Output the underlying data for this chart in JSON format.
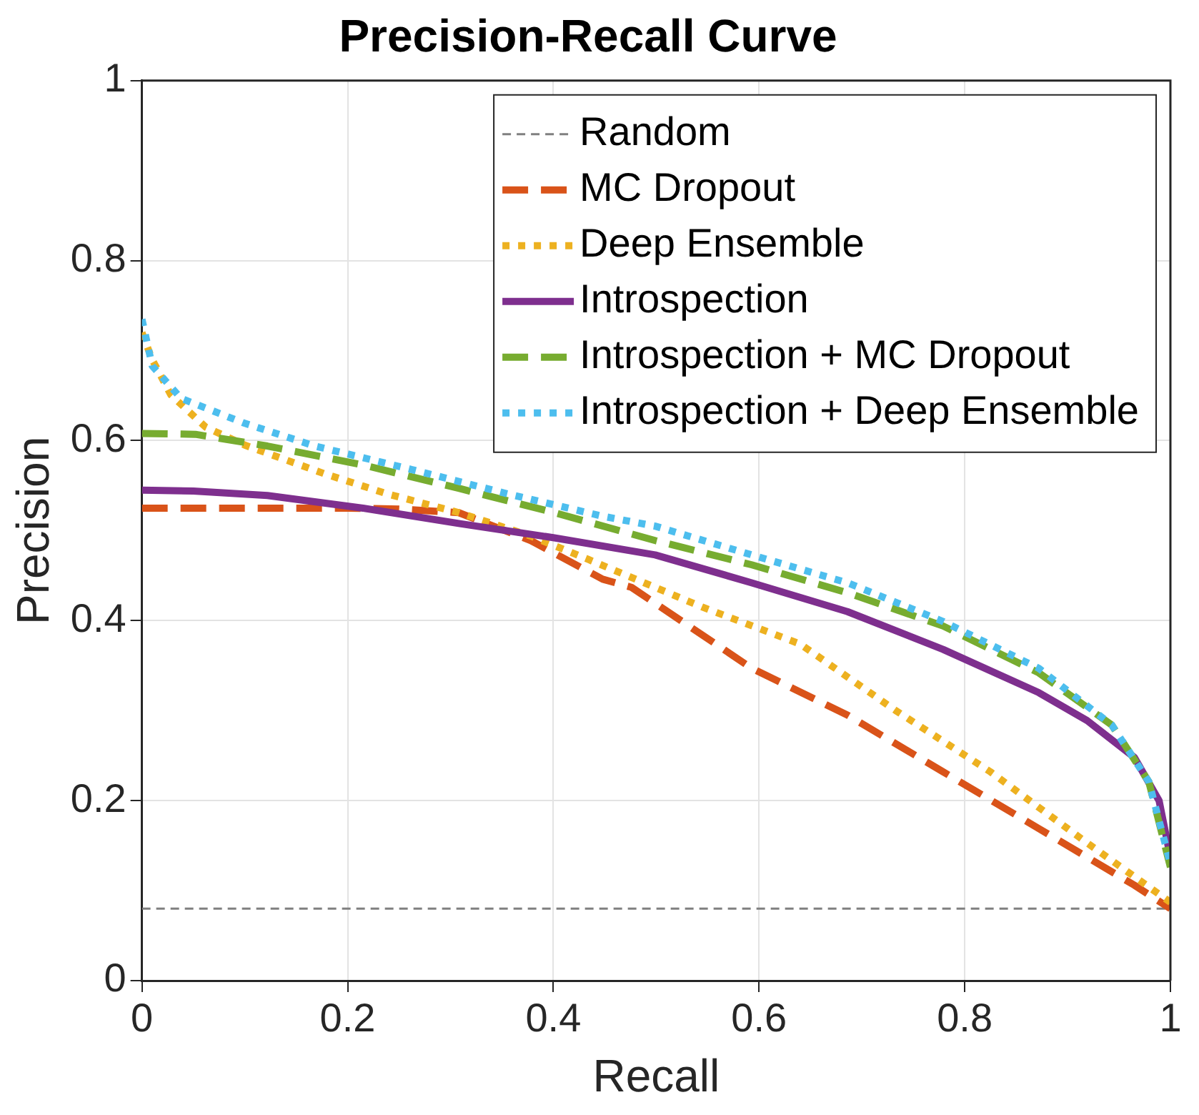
{
  "chart_data": {
    "type": "line",
    "title": "Precision-Recall Curve",
    "xlabel": "Recall",
    "ylabel": "Precision",
    "xlim": [
      0,
      1
    ],
    "ylim": [
      0,
      1
    ],
    "xticks": [
      0,
      0.2,
      0.4,
      0.6,
      0.8,
      1
    ],
    "yticks": [
      0,
      0.2,
      0.4,
      0.6,
      0.8,
      1
    ],
    "grid": true,
    "legend": "top right",
    "marker": "none",
    "series": [
      {
        "name": "Random",
        "color": "#808080",
        "line_style": "dashed",
        "x": [
          0,
          1
        ],
        "values": [
          0.08,
          0.08
        ]
      },
      {
        "name": "MC Dropout",
        "color": "#d95319",
        "line_style": "dashed",
        "x": [
          0,
          0.1,
          0.2,
          0.25,
          0.308,
          0.378,
          0.448,
          0.476,
          0.593,
          0.686,
          0.779,
          0.872,
          0.965,
          1
        ],
        "values": [
          0.525,
          0.525,
          0.525,
          0.524,
          0.52,
          0.489,
          0.446,
          0.437,
          0.347,
          0.295,
          0.232,
          0.169,
          0.106,
          0.08
        ]
      },
      {
        "name": "Deep Ensemble",
        "color": "#edb120",
        "line_style": "dotted",
        "x": [
          0,
          0.01,
          0.028,
          0.062,
          0.1,
          0.178,
          0.238,
          0.308,
          0.378,
          0.434,
          0.545,
          0.64,
          0.733,
          0.825,
          0.919,
          1
        ],
        "values": [
          0.72,
          0.69,
          0.651,
          0.615,
          0.595,
          0.563,
          0.541,
          0.52,
          0.494,
          0.468,
          0.415,
          0.374,
          0.3,
          0.232,
          0.153,
          0.087
        ]
      },
      {
        "name": "Introspection",
        "color": "#7e2f8e",
        "line_style": "solid",
        "x": [
          0,
          0.05,
          0.122,
          0.215,
          0.308,
          0.401,
          0.499,
          0.593,
          0.686,
          0.779,
          0.872,
          0.919,
          0.965,
          0.989,
          1
        ],
        "values": [
          0.545,
          0.544,
          0.539,
          0.525,
          0.508,
          0.492,
          0.473,
          0.442,
          0.41,
          0.368,
          0.32,
          0.289,
          0.248,
          0.2,
          0.137
        ]
      },
      {
        "name": "Introspection + MC Dropout",
        "color": "#77ac30",
        "line_style": "dashed",
        "x": [
          0,
          0.052,
          0.122,
          0.215,
          0.308,
          0.401,
          0.499,
          0.593,
          0.686,
          0.779,
          0.872,
          0.943,
          0.979,
          1
        ],
        "values": [
          0.608,
          0.607,
          0.594,
          0.573,
          0.547,
          0.52,
          0.489,
          0.462,
          0.431,
          0.394,
          0.342,
          0.284,
          0.221,
          0.126
        ]
      },
      {
        "name": "Introspection + Deep Ensemble",
        "color": "#4dbeee",
        "line_style": "dotted",
        "x": [
          0,
          0.01,
          0.038,
          0.098,
          0.168,
          0.262,
          0.355,
          0.448,
          0.499,
          0.593,
          0.686,
          0.779,
          0.872,
          0.943,
          0.979,
          1
        ],
        "values": [
          0.735,
          0.683,
          0.647,
          0.62,
          0.594,
          0.568,
          0.541,
          0.516,
          0.505,
          0.473,
          0.442,
          0.399,
          0.347,
          0.284,
          0.221,
          0.13
        ]
      }
    ]
  }
}
